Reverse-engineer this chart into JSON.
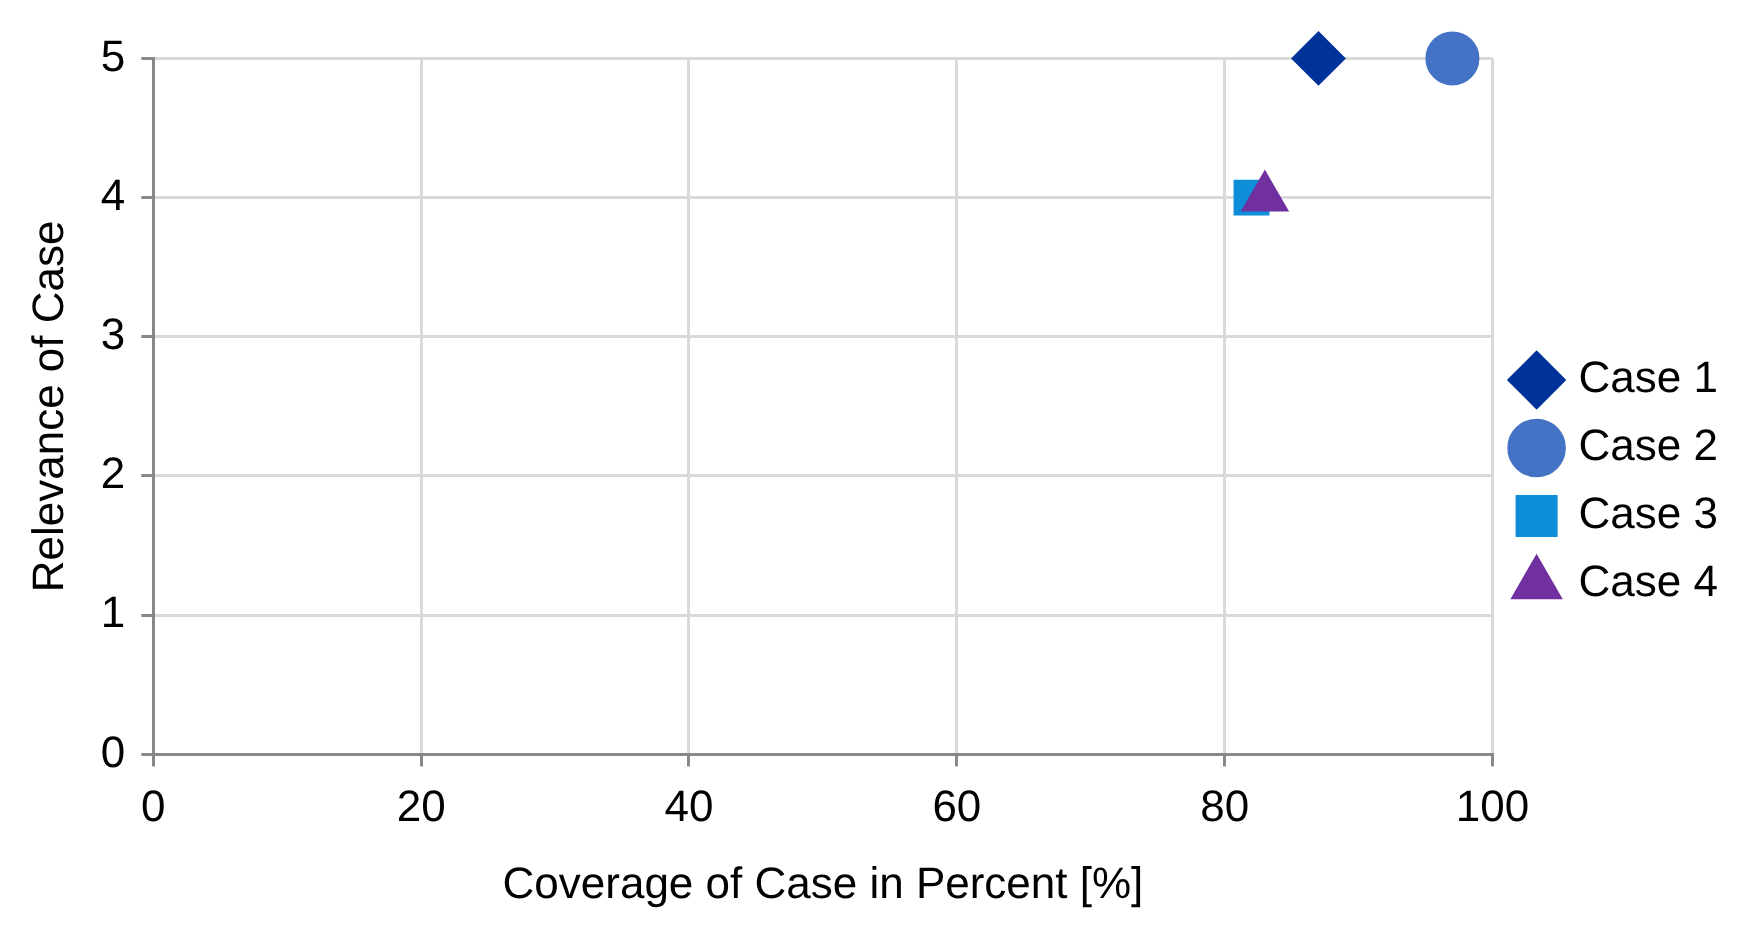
{
  "chart_data": {
    "type": "scatter",
    "xlabel": "Coverage of Case in Percent [%]",
    "ylabel": "Relevance of Case",
    "series": [
      {
        "name": "Case 1",
        "color": "#003399",
        "x": [
          87
        ],
        "values": [
          5
        ],
        "marker": "diamond"
      },
      {
        "name": "Case 2",
        "color": "#4472c4",
        "x": [
          97
        ],
        "values": [
          5
        ],
        "marker": "circle"
      },
      {
        "name": "Case 3",
        "color": "#0e8ed8",
        "x": [
          82
        ],
        "values": [
          4
        ],
        "marker": "square"
      },
      {
        "name": "Case 4",
        "color": "#7030a0",
        "x": [
          83
        ],
        "values": [
          4
        ],
        "marker": "triangle"
      }
    ],
    "xlim": [
      0,
      100
    ],
    "xticks": [
      0,
      20,
      40,
      60,
      80,
      100
    ],
    "ylim": [
      0,
      5
    ],
    "yticks": [
      0,
      1,
      2,
      3,
      4,
      5
    ],
    "grid": true,
    "legend": "right"
  }
}
